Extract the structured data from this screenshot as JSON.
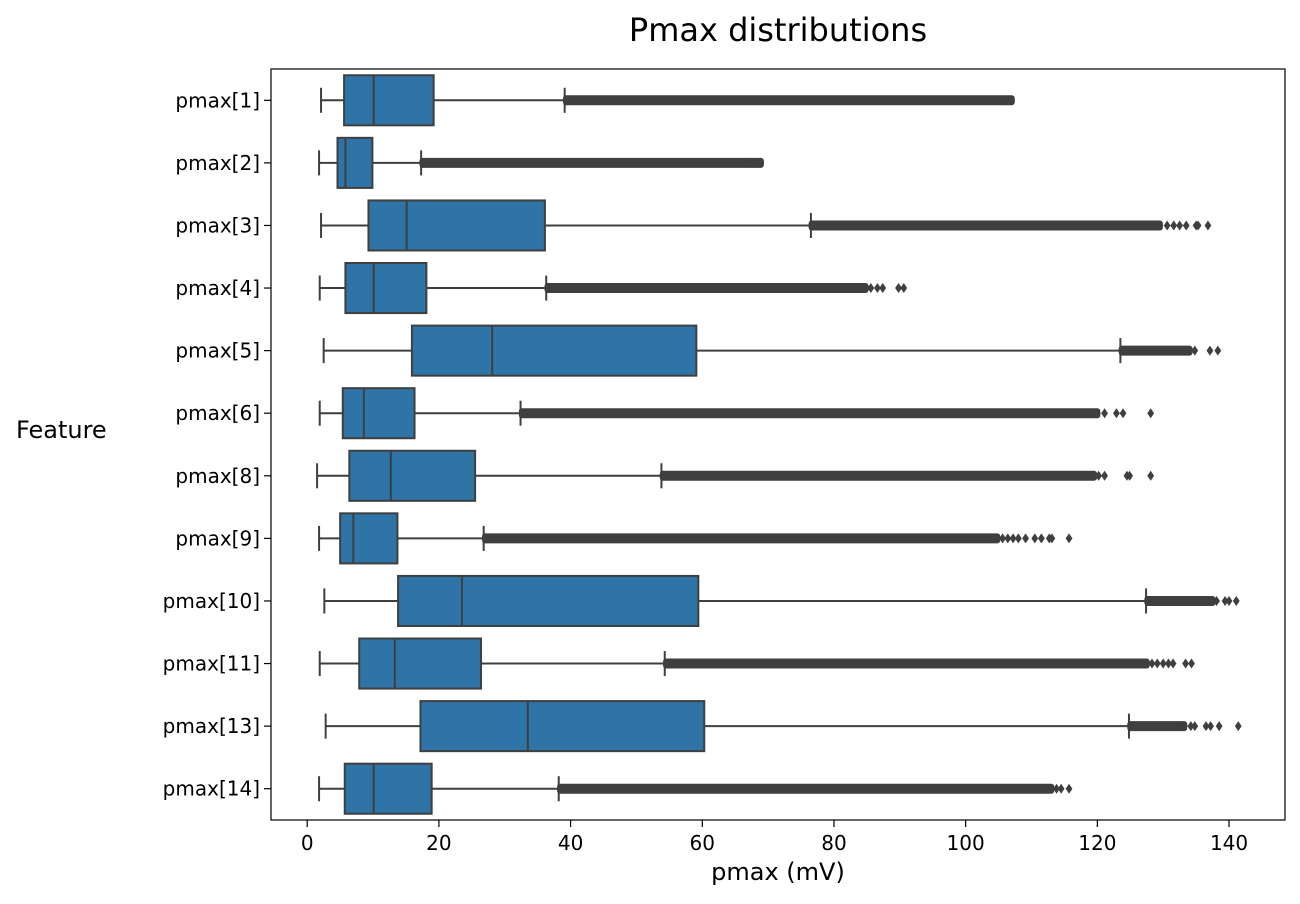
{
  "chart_data": {
    "type": "boxplot",
    "orientation": "horizontal",
    "title": "Pmax distributions",
    "xlabel": "pmax (mV)",
    "ylabel": "Feature",
    "xlim": [
      -5.5,
      148.5
    ],
    "xticks": [
      0,
      20,
      40,
      60,
      80,
      100,
      120,
      140
    ],
    "grid": false,
    "box_color": "#2f74a6",
    "line_color": "#3f3f3f",
    "series": [
      {
        "label": "pmax[1]",
        "whisker_low": 2.1,
        "q1": 5.6,
        "median": 10.1,
        "q3": 19.2,
        "whisker_high": 39.1,
        "outlier_min": 39.3,
        "outlier_max": 107.0,
        "outlier_extra": [
          105.6,
          106.4
        ]
      },
      {
        "label": "pmax[2]",
        "whisker_low": 1.8,
        "q1": 4.6,
        "median": 5.8,
        "q3": 9.9,
        "whisker_high": 17.3,
        "outlier_min": 17.5,
        "outlier_max": 68.9,
        "outlier_extra": [
          66.5,
          67.6,
          68.5
        ]
      },
      {
        "label": "pmax[3]",
        "whisker_low": 2.1,
        "q1": 9.3,
        "median": 15.1,
        "q3": 36.1,
        "whisker_high": 76.5,
        "outlier_min": 76.6,
        "outlier_max": 129.5,
        "outlier_extra": [
          130.6,
          131.6,
          132.5,
          133.5,
          135.0,
          135.3,
          136.8
        ]
      },
      {
        "label": "pmax[4]",
        "whisker_low": 1.9,
        "q1": 5.8,
        "median": 10.1,
        "q3": 18.1,
        "whisker_high": 36.3,
        "outlier_min": 36.5,
        "outlier_max": 84.8,
        "outlier_extra": [
          85.6,
          86.6,
          87.4,
          89.8,
          90.6
        ]
      },
      {
        "label": "pmax[5]",
        "whisker_low": 2.5,
        "q1": 15.9,
        "median": 28.1,
        "q3": 59.1,
        "whisker_high": 123.5,
        "outlier_min": 123.7,
        "outlier_max": 134.0,
        "outlier_extra": [
          134.8,
          137.1,
          138.3
        ]
      },
      {
        "label": "pmax[6]",
        "whisker_low": 1.9,
        "q1": 5.4,
        "median": 8.6,
        "q3": 16.3,
        "whisker_high": 32.4,
        "outlier_min": 32.6,
        "outlier_max": 120.0,
        "outlier_extra": [
          121.1,
          122.9,
          123.9,
          128.1
        ]
      },
      {
        "label": "pmax[8]",
        "whisker_low": 1.5,
        "q1": 6.4,
        "median": 12.7,
        "q3": 25.5,
        "whisker_high": 53.8,
        "outlier_min": 54.0,
        "outlier_max": 119.5,
        "outlier_extra": [
          120.2,
          121.1,
          124.5,
          124.9,
          128.1
        ]
      },
      {
        "label": "pmax[9]",
        "whisker_low": 1.8,
        "q1": 5.0,
        "median": 7.0,
        "q3": 13.7,
        "whisker_high": 26.8,
        "outlier_min": 27.0,
        "outlier_max": 104.8,
        "outlier_extra": [
          105.6,
          106.4,
          107.2,
          108.0,
          109.1,
          110.5,
          111.5,
          112.7,
          113.1,
          115.7
        ]
      },
      {
        "label": "pmax[10]",
        "whisker_low": 2.6,
        "q1": 13.8,
        "median": 23.5,
        "q3": 59.4,
        "whisker_high": 127.4,
        "outlier_min": 127.6,
        "outlier_max": 137.5,
        "outlier_extra": [
          138.1,
          139.4,
          140.0,
          141.1
        ]
      },
      {
        "label": "pmax[11]",
        "whisker_low": 1.9,
        "q1": 7.9,
        "median": 13.3,
        "q3": 26.4,
        "whisker_high": 54.3,
        "outlier_min": 54.5,
        "outlier_max": 127.5,
        "outlier_extra": [
          128.3,
          129.1,
          130.0,
          130.8,
          131.5,
          133.4,
          134.3
        ]
      },
      {
        "label": "pmax[13]",
        "whisker_low": 2.8,
        "q1": 17.2,
        "median": 33.5,
        "q3": 60.3,
        "whisker_high": 124.8,
        "outlier_min": 125.0,
        "outlier_max": 133.2,
        "outlier_extra": [
          134.2,
          134.8,
          136.5,
          137.2,
          138.5,
          141.4
        ]
      },
      {
        "label": "pmax[14]",
        "whisker_low": 1.8,
        "q1": 5.7,
        "median": 10.1,
        "q3": 18.9,
        "whisker_high": 38.2,
        "outlier_min": 38.4,
        "outlier_max": 113.0,
        "outlier_extra": [
          113.8,
          114.5,
          115.7
        ]
      }
    ]
  }
}
